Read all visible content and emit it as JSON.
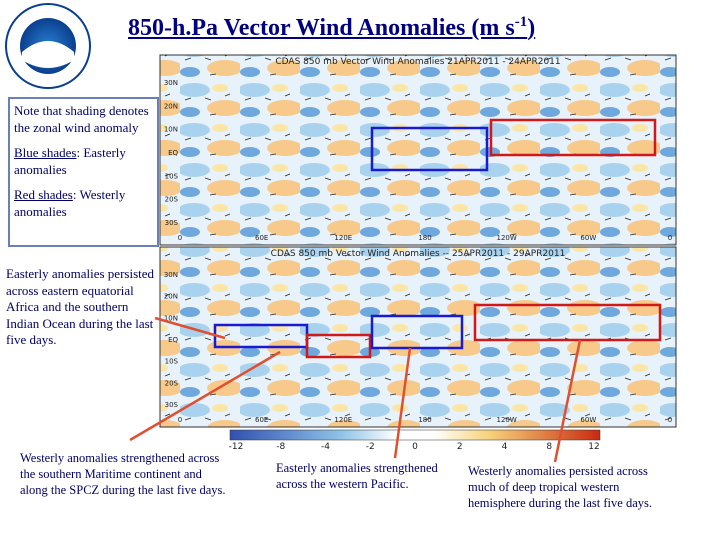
{
  "header": {
    "title": "850-h.Pa Vector Wind Anomalies  (m s",
    "title_superscript": "-1",
    "title_suffix": ")"
  },
  "note_box": {
    "intro": "Note that shading denotes the zonal wind anomaly",
    "blue_label": "Blue shades",
    "blue_text": ": Easterly anomalies",
    "red_label": "Red shades",
    "red_text": ": Westerly anomalies"
  },
  "maps": [
    {
      "header": "CDAS 850 mb Vector Wind Anomalies   21APR2011 - 24APR2011"
    },
    {
      "header": "CDAS 850 mb Vector Wind Anomalies -- 25APR2011 - 29APR2011"
    }
  ],
  "lat_labels": [
    "30N",
    "20N",
    "10N",
    "EQ",
    "10S",
    "20S",
    "30S"
  ],
  "lon_labels": [
    "0",
    "60E",
    "120E",
    "180",
    "120W",
    "60W",
    "0"
  ],
  "colorbar_labels": [
    "-12",
    "-8",
    "-4",
    "-2",
    "0",
    "2",
    "4",
    "8",
    "12"
  ],
  "captions": {
    "left": "Easterly anomalies persisted across eastern equatorial Africa and the southern Indian Ocean during the last five days.",
    "bottom_left": "Westerly anomalies strengthened across the southern Maritime continent and along the SPCZ during the last five days.",
    "bottom_center": "Easterly anomalies strengthened across the western Pacific.",
    "bottom_right": "Westerly anomalies persisted across much of deep tropical western hemisphere during the last five days."
  }
}
